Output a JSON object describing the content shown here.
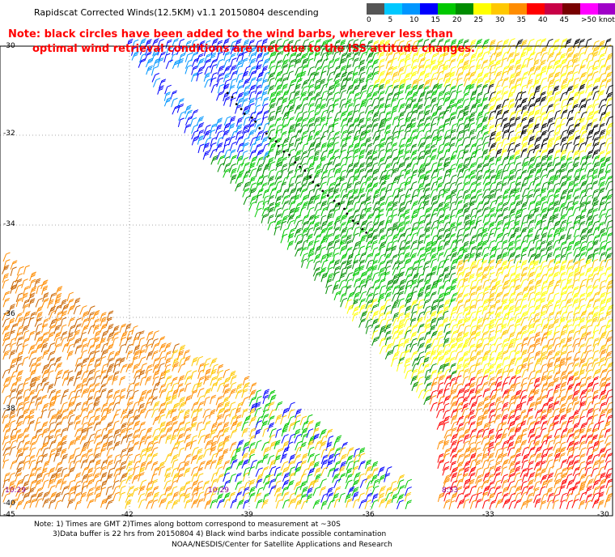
{
  "title": "Rapidscat Corrected Winds(12.5KM) v1.1 20150804 descending",
  "note": {
    "line1": "Note: black circles have been added to the wind barbs, wherever less than",
    "line2": "optimal wind retrieval conditions are met due to the ISS attitude changes."
  },
  "scale": {
    "colors": [
      "#555555",
      "#00c8ff",
      "#0096ff",
      "#0000ff",
      "#00c800",
      "#008c00",
      "#ffff00",
      "#ffc800",
      "#ff8c00",
      "#ff0000",
      "#c80046",
      "#780000",
      "#ff00ff",
      "#a000c8",
      "#500096"
    ],
    "labels": [
      "0",
      "5",
      "10",
      "15",
      "20",
      "25",
      "30",
      "35",
      "40",
      "45",
      ">50 knots"
    ]
  },
  "lat_labels": [
    "-30",
    "-32",
    "-34",
    "-36",
    "-38",
    "-40"
  ],
  "lon_labels": [
    "-45",
    "-42",
    "-39",
    "-36",
    "-33",
    "-30"
  ],
  "time_labels": [
    "10:29",
    "10:29",
    "8:53"
  ],
  "footer": {
    "line1": "Note: 1) Times are GMT 2)Times along bottom correspond to measurement at ~30S",
    "line2": "3)Data buffer is 22 hrs from 20150804 4) Black wind barbs indicate possible contamination",
    "line3": "NOAA/NESDIS/Center for Satellite Applications and Research"
  }
}
